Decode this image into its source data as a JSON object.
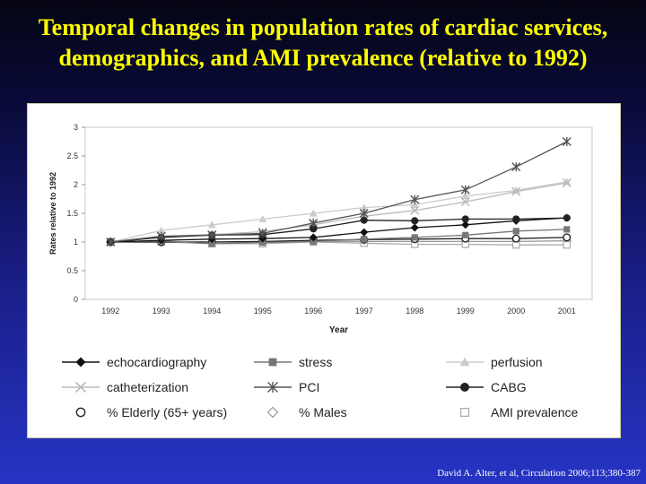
{
  "slide": {
    "title_line1": "Temporal changes in population rates of cardiac services,",
    "title_line2": "demographics, and AMI prevalence (relative to 1992)",
    "citation": "David A. Alter, et al, Circulation 2006;113;380-387"
  },
  "chart_data": {
    "type": "line",
    "xlabel": "Year",
    "ylabel": "Rates relative to 1992",
    "ylim": [
      0,
      3
    ],
    "yticks": [
      "0",
      "0.5",
      "1",
      "1.5",
      "2",
      "2.5",
      "3"
    ],
    "categories": [
      "1992",
      "1993",
      "1994",
      "1995",
      "1996",
      "1997",
      "1998",
      "1999",
      "2000",
      "2001"
    ],
    "grid": false,
    "legend_position": "bottom",
    "series": [
      {
        "name": "echocardiography",
        "color": "#111111",
        "marker": "diamond-filled",
        "values": [
          1.0,
          1.03,
          1.05,
          1.06,
          1.08,
          1.17,
          1.25,
          1.3,
          1.37,
          1.42
        ]
      },
      {
        "name": "stress",
        "color": "#777777",
        "marker": "square-filled",
        "values": [
          1.0,
          1.02,
          0.97,
          0.99,
          1.01,
          1.05,
          1.08,
          1.12,
          1.19,
          1.22
        ]
      },
      {
        "name": "perfusion",
        "color": "#cccccc",
        "marker": "triangle-filled",
        "values": [
          1.0,
          1.2,
          1.3,
          1.4,
          1.5,
          1.6,
          1.65,
          1.8,
          1.9,
          2.05
        ]
      },
      {
        "name": "catheterization",
        "color": "#bbbbbb",
        "marker": "x",
        "values": [
          1.0,
          1.1,
          1.13,
          1.18,
          1.3,
          1.45,
          1.55,
          1.7,
          1.88,
          2.03
        ]
      },
      {
        "name": "PCI",
        "color": "#555555",
        "marker": "star",
        "values": [
          1.0,
          1.1,
          1.12,
          1.15,
          1.33,
          1.5,
          1.74,
          1.91,
          2.31,
          2.75
        ]
      },
      {
        "name": "CABG",
        "color": "#222222",
        "marker": "circle-filled",
        "values": [
          1.0,
          1.08,
          1.12,
          1.13,
          1.23,
          1.38,
          1.37,
          1.4,
          1.4,
          1.42
        ]
      },
      {
        "name": "% Elderly (65+ years)",
        "color": "#222222",
        "marker": "circle-open",
        "values": [
          1.0,
          1.0,
          1.0,
          1.01,
          1.03,
          1.04,
          1.05,
          1.06,
          1.06,
          1.08
        ]
      },
      {
        "name": "% Males",
        "color": "#999999",
        "marker": "diamond-open",
        "values": [
          1.0,
          1.0,
          1.0,
          1.0,
          1.01,
          1.01,
          1.01,
          1.01,
          1.01,
          1.02
        ]
      },
      {
        "name": "AMI prevalence",
        "color": "#aaaaaa",
        "marker": "square-open",
        "values": [
          1.0,
          1.0,
          0.97,
          0.97,
          1.0,
          0.98,
          0.96,
          0.96,
          0.95,
          0.95
        ]
      }
    ]
  }
}
